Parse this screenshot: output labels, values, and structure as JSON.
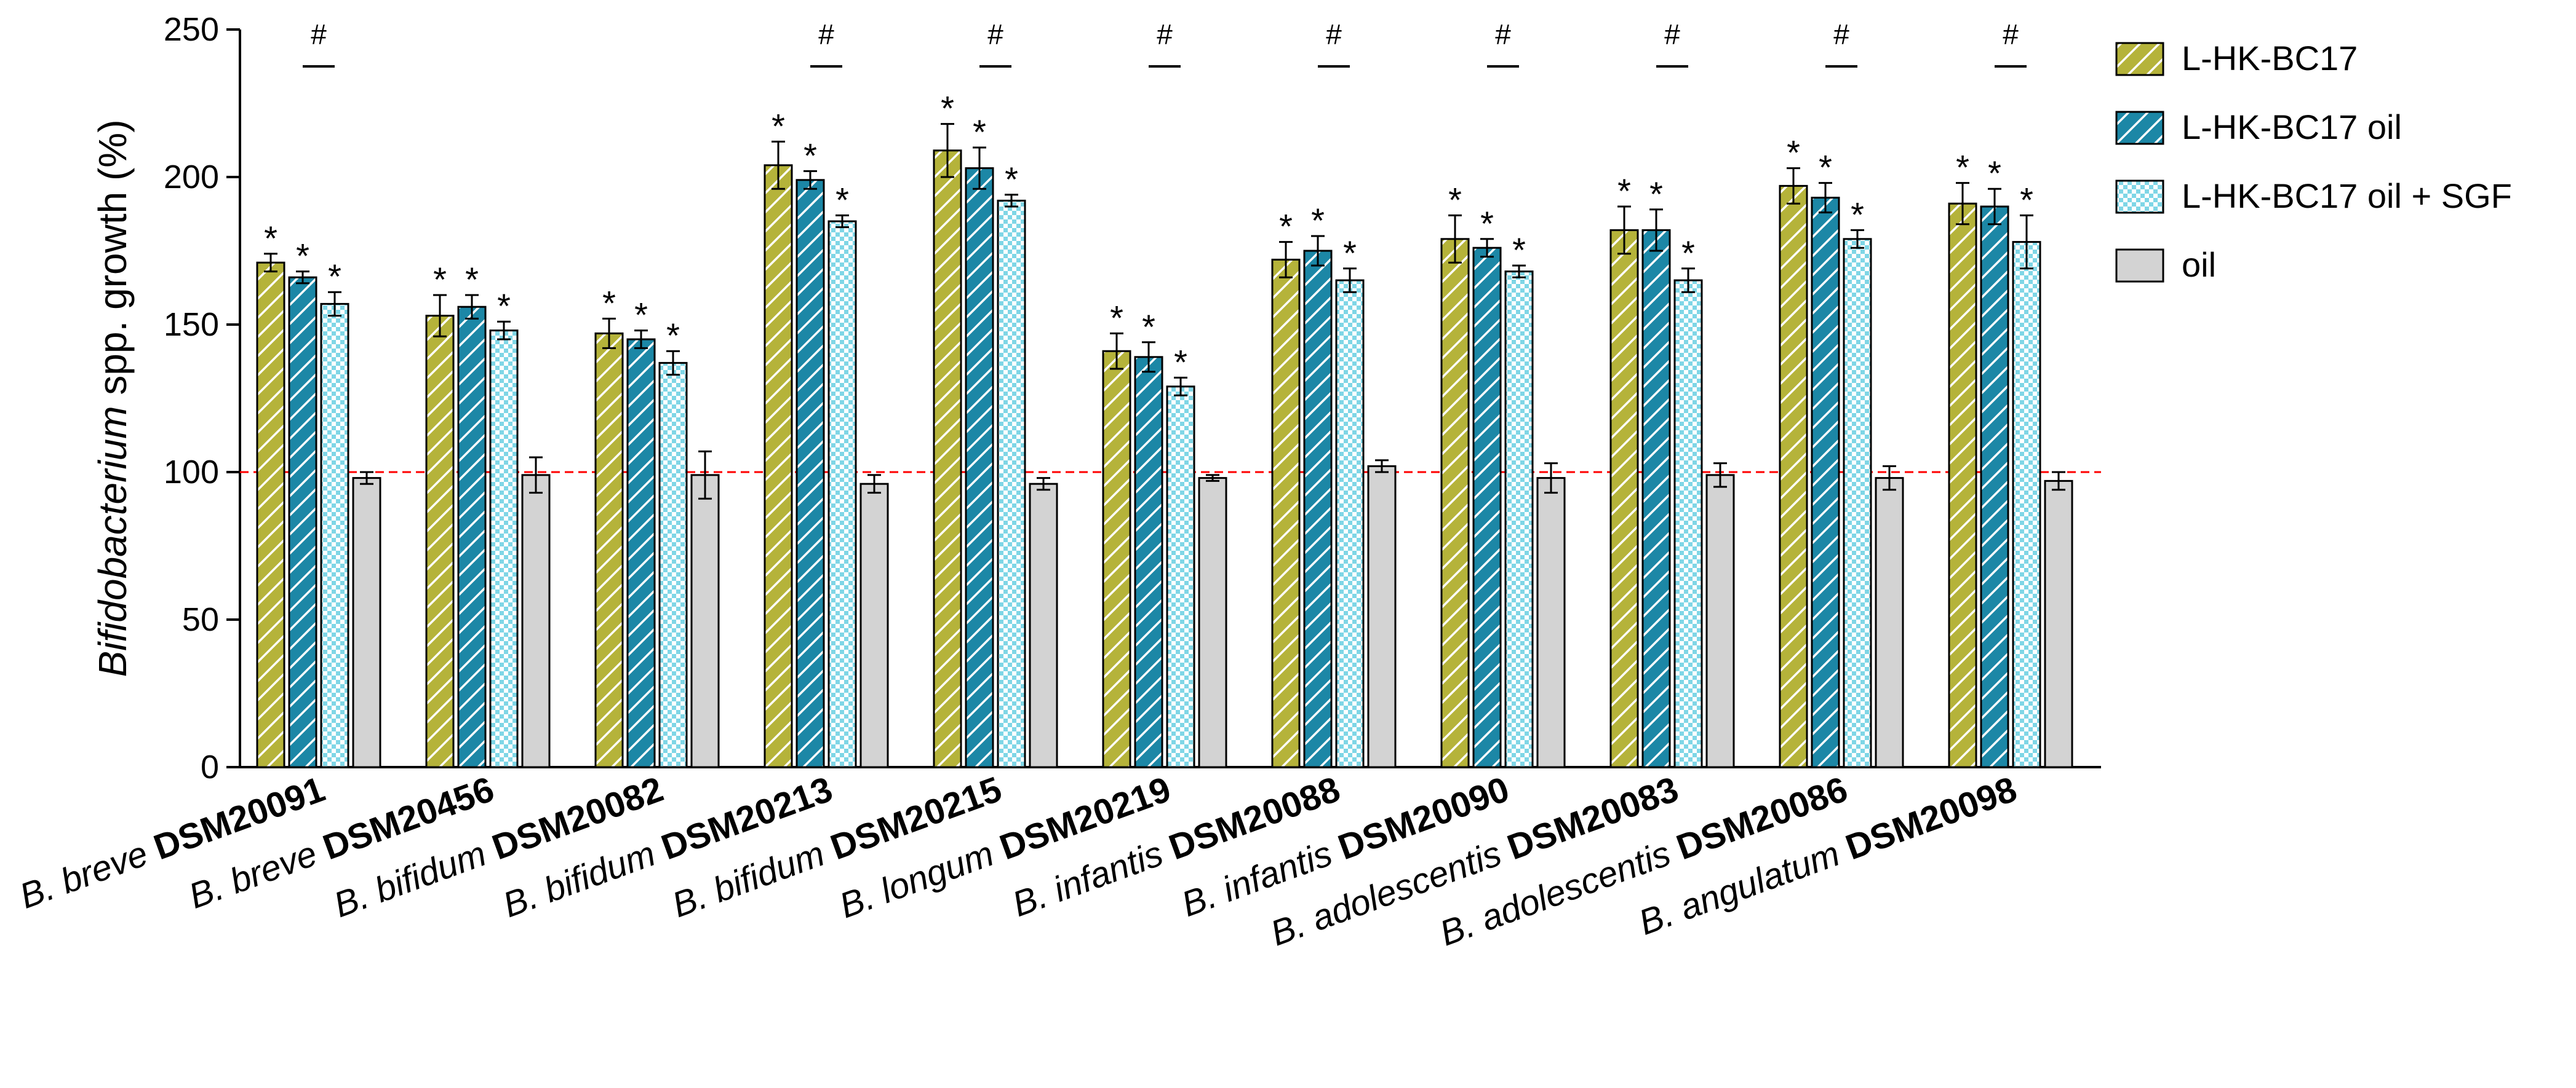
{
  "chart_data": {
    "type": "bar",
    "ylabel_italic": "Bifidobacterium",
    "ylabel_rest": " spp. growth (%)",
    "ylim": [
      0,
      250
    ],
    "yticks": [
      "0",
      "50",
      "100",
      "150",
      "200",
      "250"
    ],
    "reference_line": {
      "value": 100,
      "color": "#ff0000",
      "style": "dashed"
    },
    "categories": [
      {
        "species": "B. breve",
        "strain": "DSM20091"
      },
      {
        "species": "B. breve",
        "strain": "DSM20456"
      },
      {
        "species": "B. bifidum",
        "strain": "DSM20082"
      },
      {
        "species": "B. bifidum",
        "strain": "DSM20213"
      },
      {
        "species": "B. bifidum",
        "strain": "DSM20215"
      },
      {
        "species": "B. longum",
        "strain": "DSM20219"
      },
      {
        "species": "B. infantis",
        "strain": "DSM20088"
      },
      {
        "species": "B. infantis",
        "strain": "DSM20090"
      },
      {
        "species": "B. adolescentis",
        "strain": "DSM20083"
      },
      {
        "species": "B. adolescentis",
        "strain": "DSM20086"
      },
      {
        "species": "B. angulatum",
        "strain": "DSM20098"
      }
    ],
    "series": [
      {
        "name": "L-HK-BC17",
        "color": "#b5b33a",
        "pattern": "diagonal-lines",
        "values": [
          171,
          153,
          147,
          204,
          209,
          141,
          172,
          179,
          182,
          197,
          191
        ],
        "errors": [
          3,
          7,
          5,
          8,
          9,
          6,
          6,
          8,
          8,
          6,
          7
        ],
        "stars": [
          true,
          true,
          true,
          true,
          true,
          true,
          true,
          true,
          true,
          true,
          true
        ]
      },
      {
        "name": "L-HK-BC17 oil",
        "color": "#1c87a6",
        "pattern": "diagonal-lines",
        "values": [
          166,
          156,
          145,
          199,
          203,
          139,
          175,
          176,
          182,
          193,
          190
        ],
        "errors": [
          2,
          4,
          3,
          3,
          7,
          5,
          5,
          3,
          7,
          5,
          6
        ],
        "stars": [
          true,
          true,
          true,
          true,
          true,
          true,
          true,
          true,
          true,
          true,
          true
        ]
      },
      {
        "name": "L-HK-BC17 oil + SGF",
        "color": "#7fd6e6",
        "pattern": "checkered",
        "values": [
          157,
          148,
          137,
          185,
          192,
          129,
          165,
          168,
          165,
          179,
          178
        ],
        "errors": [
          4,
          3,
          4,
          2,
          2,
          3,
          4,
          2,
          4,
          3,
          9
        ],
        "stars": [
          true,
          true,
          true,
          true,
          true,
          true,
          true,
          true,
          true,
          true,
          true
        ]
      },
      {
        "name": "oil",
        "color": "#d3d3d3",
        "pattern": "solid",
        "values": [
          98,
          99,
          99,
          96,
          96,
          98,
          102,
          98,
          99,
          98,
          97
        ],
        "errors": [
          2,
          6,
          8,
          3,
          2,
          1,
          2,
          5,
          4,
          4,
          3
        ],
        "stars": [
          false,
          false,
          false,
          false,
          false,
          false,
          false,
          false,
          false,
          false,
          false
        ]
      }
    ],
    "star_label": "*",
    "hash_label": "#",
    "hash_markers": [
      true,
      false,
      false,
      true,
      true,
      true,
      true,
      true,
      true,
      true,
      true
    ],
    "legend": {
      "placement": "top-right"
    }
  }
}
